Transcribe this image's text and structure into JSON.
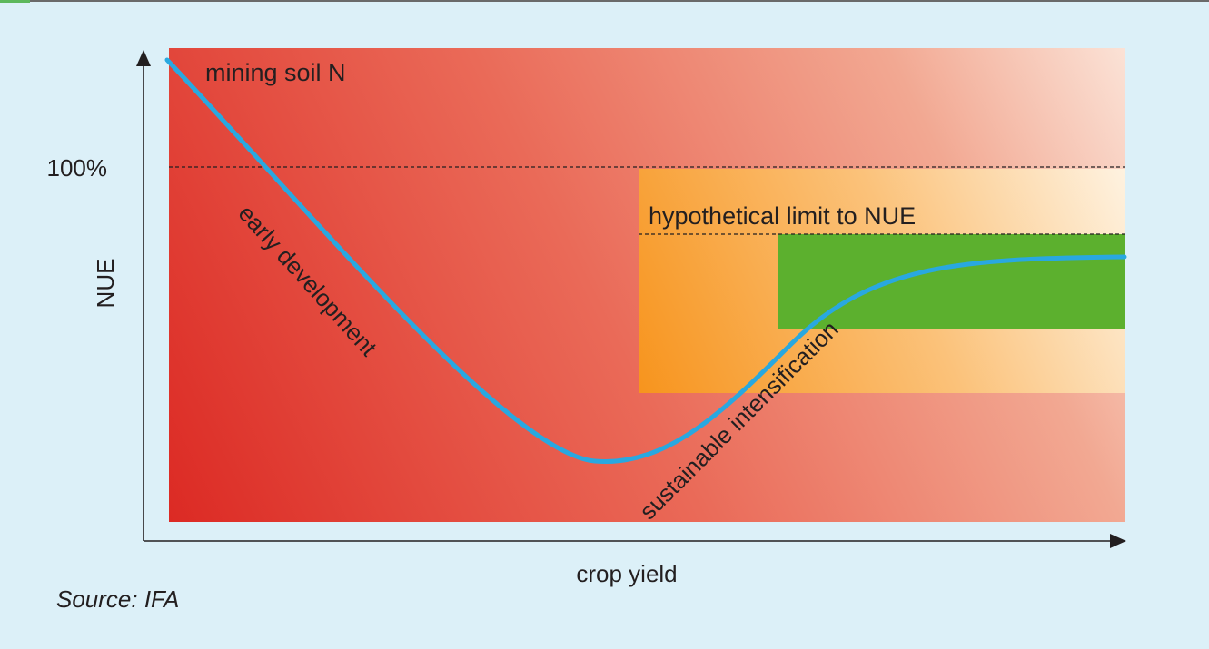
{
  "diagram": {
    "y_axis_label": "NUE",
    "x_axis_label": "crop yield",
    "reference_tick": "100%",
    "annotations": {
      "mining": "mining soil N",
      "early": "early development",
      "limit": "hypothetical limit to NUE",
      "sustainable": "sustainable intensification"
    },
    "colors": {
      "background": "#dcf0f8",
      "region_dark_red": "#dc2a24",
      "region_light": "#fbe2d6",
      "orange_zone": "#f7941d",
      "green_zone": "#5cb02e",
      "curve": "#29a8e0"
    }
  },
  "source": "Source: IFA"
}
